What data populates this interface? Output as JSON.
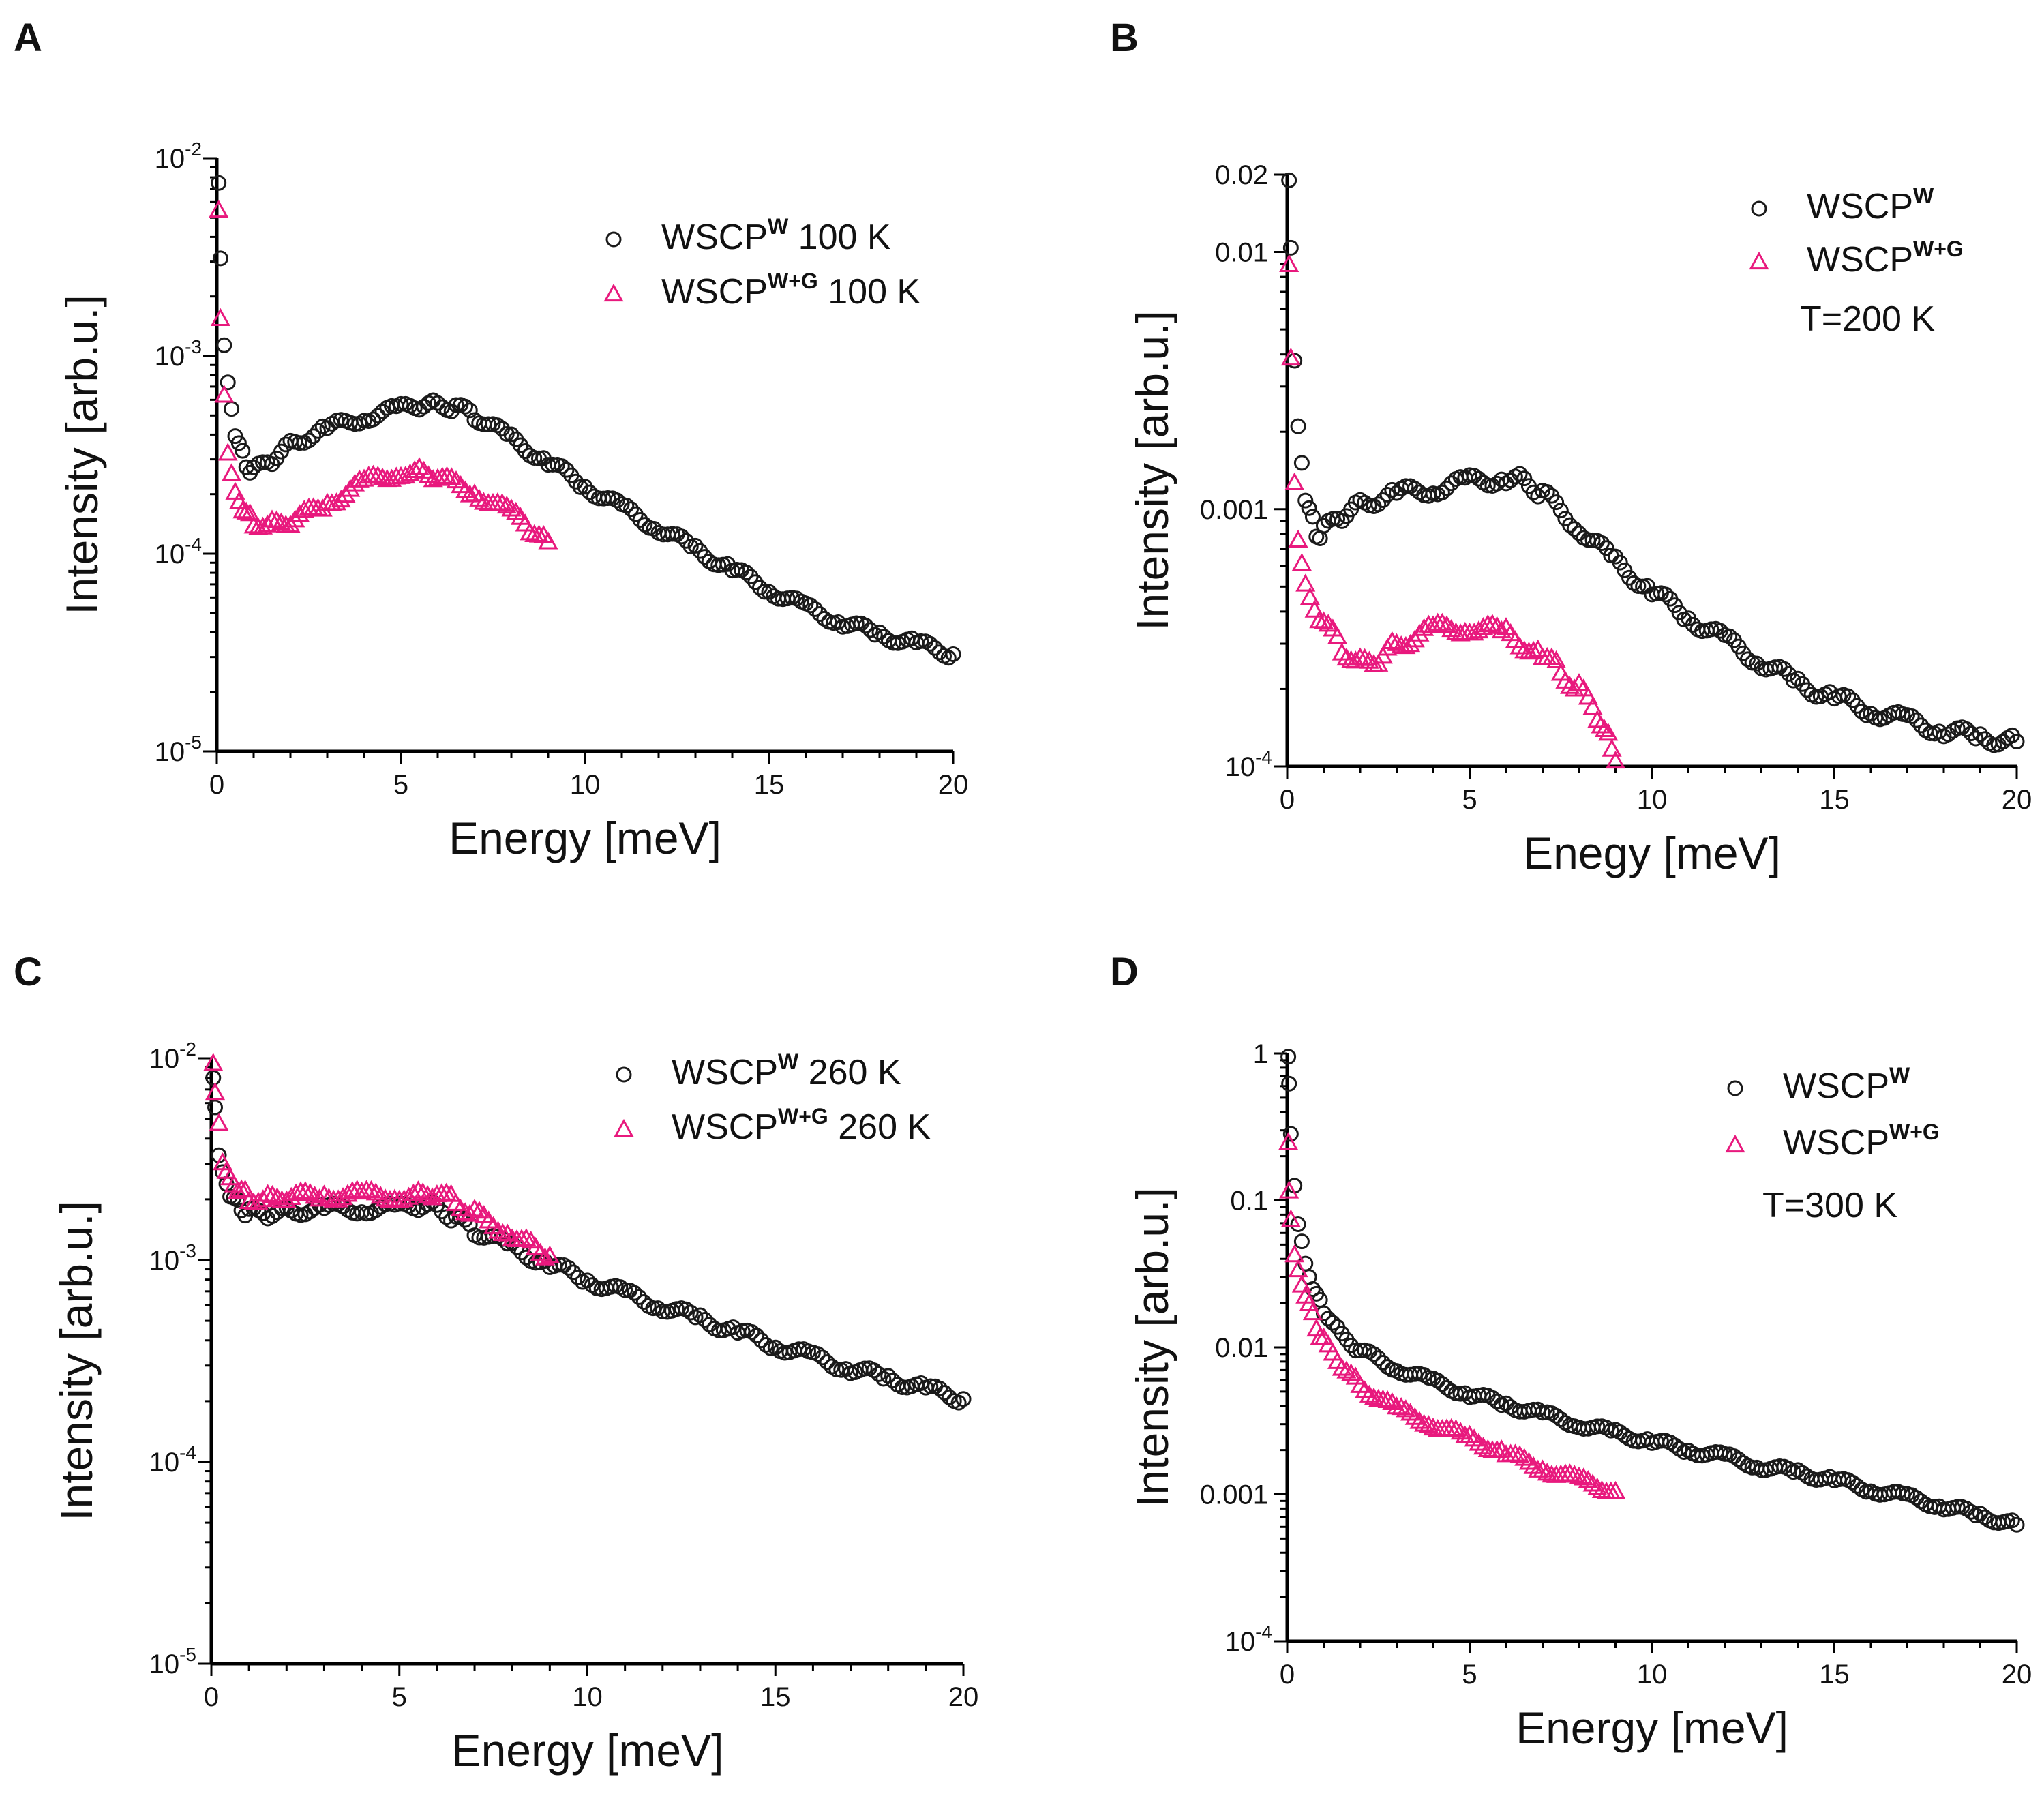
{
  "figure": {
    "colors": {
      "series_w": "#1a1a1a",
      "series_wg": "#e8197d"
    }
  },
  "chart_data": [
    {
      "panel": "A",
      "type": "scatter",
      "xlabel": "Energy [meV]",
      "ylabel": "Intensity [arb.u.]",
      "xlim": [
        0,
        20
      ],
      "ylim": [
        1e-05,
        0.01
      ],
      "yscale": "log",
      "x_ticks": [
        "0",
        "5",
        "10",
        "15",
        "20"
      ],
      "y_ticks": [
        {
          "value": 1e-05,
          "base": "10",
          "exp": "-5"
        },
        {
          "value": 0.0001,
          "base": "10",
          "exp": "-4"
        },
        {
          "value": 0.001,
          "base": "10",
          "exp": "-3"
        },
        {
          "value": 0.01,
          "base": "10",
          "exp": "-2"
        }
      ],
      "legend_position": "top-right",
      "legend": [
        {
          "marker": "circle",
          "name": "WSCP",
          "sup": "W",
          "suffix": " 100 K"
        },
        {
          "marker": "triangle",
          "name": "WSCP",
          "sup": "W+G",
          "suffix": " 100 K"
        }
      ],
      "series": [
        {
          "name": "WSCP^W 100 K",
          "marker": "circle",
          "color": "#1a1a1a",
          "x": [
            0.05,
            0.1,
            0.2,
            0.3,
            0.5,
            0.8,
            1.0,
            1.5,
            2.0,
            3.0,
            4.0,
            5.0,
            5.5,
            6.0,
            6.5,
            7.0,
            8.0,
            9.0,
            10.0,
            11.0,
            12.0,
            13.0,
            14.0,
            15.0,
            16.0,
            17.0,
            18.0,
            19.0,
            20.0
          ],
          "y": [
            0.0075,
            0.003,
            0.0012,
            0.0007,
            0.0004,
            0.00028,
            0.00026,
            0.0003,
            0.00036,
            0.00043,
            0.00049,
            0.00054,
            0.00056,
            0.00057,
            0.00055,
            0.0005,
            0.00038,
            0.00029,
            0.00022,
            0.00017,
            0.000135,
            0.000105,
            8.3e-05,
            6.6e-05,
            5.3e-05,
            4.5e-05,
            3.9e-05,
            3.5e-05,
            3.1e-05
          ]
        },
        {
          "name": "WSCP^W+G 100 K",
          "marker": "triangle",
          "color": "#e8197d",
          "x": [
            0.05,
            0.1,
            0.2,
            0.3,
            0.5,
            0.8,
            1.0,
            1.5,
            2.0,
            3.0,
            4.0,
            5.0,
            5.5,
            6.0,
            7.0,
            8.0,
            8.5,
            9.0
          ],
          "y": [
            0.0055,
            0.0016,
            0.0006,
            0.00034,
            0.0002,
            0.00016,
            0.000145,
            0.00014,
            0.000145,
            0.00018,
            0.00023,
            0.00026,
            0.00026,
            0.000245,
            0.000205,
            0.00016,
            0.000135,
            0.000115
          ]
        }
      ]
    },
    {
      "panel": "B",
      "type": "scatter",
      "xlabel": "Enegy [meV]",
      "ylabel": "Intensity [arb.u.]",
      "xlim": [
        0,
        20
      ],
      "ylim": [
        0.0001,
        0.02
      ],
      "yscale": "log",
      "x_ticks": [
        "0",
        "5",
        "10",
        "15",
        "20"
      ],
      "y_ticks": [
        {
          "value": 0.0001,
          "base": "10",
          "exp": "-4"
        },
        {
          "value": 0.001,
          "label": "0.001"
        },
        {
          "value": 0.01,
          "label": "0.01"
        },
        {
          "value": 0.02,
          "label": "0.02"
        }
      ],
      "legend_position": "top-right",
      "legend": [
        {
          "marker": "circle",
          "name": "WSCP",
          "sup": "W",
          "suffix": ""
        },
        {
          "marker": "triangle",
          "name": "WSCP",
          "sup": "W+G",
          "suffix": ""
        }
      ],
      "annotation": "T=200 K",
      "series": [
        {
          "name": "WSCP^W",
          "marker": "circle",
          "color": "#1a1a1a",
          "x": [
            0.05,
            0.1,
            0.2,
            0.3,
            0.5,
            0.8,
            1.0,
            1.5,
            2.0,
            3.0,
            4.0,
            5.0,
            6.0,
            6.5,
            7.0,
            8.0,
            9.0,
            10.0,
            11.0,
            12.0,
            13.0,
            14.0,
            15.0,
            16.0,
            17.0,
            18.0,
            19.0,
            20.0
          ],
          "y": [
            0.019,
            0.01,
            0.004,
            0.002,
            0.0011,
            0.0008,
            0.00082,
            0.00095,
            0.00105,
            0.00115,
            0.0012,
            0.00128,
            0.00132,
            0.0013,
            0.00115,
            0.00085,
            0.00062,
            0.00048,
            0.00038,
            0.00031,
            0.000255,
            0.00021,
            0.000185,
            0.000165,
            0.00015,
            0.000138,
            0.00013,
            0.000125
          ]
        },
        {
          "name": "WSCP^W+G",
          "marker": "triangle",
          "color": "#e8197d",
          "x": [
            0.05,
            0.1,
            0.2,
            0.3,
            0.5,
            1.0,
            1.5,
            2.0,
            2.5,
            3.0,
            4.0,
            5.0,
            6.0,
            7.0,
            7.5,
            8.0,
            8.5,
            8.8,
            9.0
          ],
          "y": [
            0.009,
            0.004,
            0.0012,
            0.0008,
            0.0005,
            0.00036,
            0.00029,
            0.00025,
            0.00026,
            0.0003,
            0.00034,
            0.00035,
            0.00033,
            0.00027,
            0.000235,
            0.0002,
            0.00016,
            0.00013,
            0.000105
          ]
        }
      ]
    },
    {
      "panel": "C",
      "type": "scatter",
      "xlabel": "Energy [meV]",
      "ylabel": "Intensity [arb.u.]",
      "xlim": [
        0,
        20
      ],
      "ylim": [
        1e-05,
        0.01
      ],
      "yscale": "log",
      "x_ticks": [
        "0",
        "5",
        "10",
        "15",
        "20"
      ],
      "y_ticks": [
        {
          "value": 1e-05,
          "base": "10",
          "exp": "-5"
        },
        {
          "value": 0.0001,
          "base": "10",
          "exp": "-4"
        },
        {
          "value": 0.001,
          "base": "10",
          "exp": "-3"
        },
        {
          "value": 0.01,
          "base": "10",
          "exp": "-2"
        }
      ],
      "legend_position": "top-right",
      "legend": [
        {
          "marker": "circle",
          "name": "WSCP",
          "sup": "W",
          "suffix": " 260 K"
        },
        {
          "marker": "triangle",
          "name": "WSCP",
          "sup": "W+G",
          "suffix": " 260 K"
        }
      ],
      "series": [
        {
          "name": "WSCP^W 260 K",
          "marker": "circle",
          "color": "#1a1a1a",
          "x": [
            0.05,
            0.1,
            0.2,
            0.3,
            0.5,
            0.8,
            1.0,
            1.5,
            2.0,
            3.0,
            4.0,
            5.0,
            5.5,
            6.0,
            6.5,
            7.0,
            8.0,
            9.0,
            10.0,
            11.0,
            12.0,
            13.0,
            14.0,
            15.0,
            16.0,
            17.0,
            18.0,
            19.0,
            20.0
          ],
          "y": [
            0.008,
            0.0055,
            0.0035,
            0.0026,
            0.0021,
            0.0018,
            0.0017,
            0.0017,
            0.00175,
            0.0018,
            0.0018,
            0.0018,
            0.00185,
            0.00185,
            0.0016,
            0.0014,
            0.00115,
            0.00095,
            0.0008,
            0.00068,
            0.00059,
            0.00051,
            0.00044,
            0.00038,
            0.00033,
            0.00029,
            0.00026,
            0.00023,
            0.000205
          ]
        },
        {
          "name": "WSCP^W+G 260 K",
          "marker": "triangle",
          "color": "#e8197d",
          "x": [
            0.05,
            0.1,
            0.2,
            0.3,
            0.5,
            0.8,
            1.0,
            1.5,
            2.0,
            3.0,
            4.0,
            5.0,
            5.5,
            6.0,
            6.5,
            7.0,
            8.0,
            8.5,
            9.0
          ],
          "y": [
            0.0095,
            0.007,
            0.0045,
            0.0032,
            0.0025,
            0.0022,
            0.00205,
            0.002,
            0.00205,
            0.0021,
            0.0021,
            0.0021,
            0.0021,
            0.00215,
            0.00195,
            0.0017,
            0.00135,
            0.0012,
            0.00105
          ]
        }
      ]
    },
    {
      "panel": "D",
      "type": "scatter",
      "xlabel": "Energy [meV]",
      "ylabel": "Intensity [arb.u.]",
      "xlim": [
        0,
        20
      ],
      "ylim": [
        0.0001,
        1
      ],
      "yscale": "log",
      "x_ticks": [
        "0",
        "5",
        "10",
        "15",
        "20"
      ],
      "y_ticks": [
        {
          "value": 0.0001,
          "base": "10",
          "exp": "-4"
        },
        {
          "value": 0.001,
          "label": "0.001"
        },
        {
          "value": 0.01,
          "label": "0.01"
        },
        {
          "value": 0.1,
          "label": "0.1"
        },
        {
          "value": 1,
          "label": "1"
        }
      ],
      "legend_position": "top-right",
      "legend": [
        {
          "marker": "circle",
          "name": "WSCP",
          "sup": "W",
          "suffix": ""
        },
        {
          "marker": "triangle",
          "name": "WSCP",
          "sup": "W+G",
          "suffix": ""
        }
      ],
      "annotation": "T=300 K",
      "series": [
        {
          "name": "WSCP^W",
          "marker": "circle",
          "color": "#1a1a1a",
          "x": [
            0.03,
            0.05,
            0.1,
            0.2,
            0.3,
            0.5,
            0.8,
            1.0,
            1.5,
            2.0,
            3.0,
            4.0,
            5.0,
            6.0,
            7.0,
            8.0,
            9.0,
            10.0,
            11.0,
            12.0,
            13.0,
            14.0,
            15.0,
            16.0,
            17.0,
            18.0,
            19.0,
            20.0
          ],
          "y": [
            0.95,
            0.6,
            0.3,
            0.12,
            0.07,
            0.038,
            0.022,
            0.018,
            0.012,
            0.0095,
            0.0072,
            0.0058,
            0.0048,
            0.0041,
            0.0035,
            0.003,
            0.0026,
            0.0023,
            0.002,
            0.0018,
            0.00155,
            0.0014,
            0.00125,
            0.00108,
            0.00095,
            0.00083,
            0.00072,
            0.00062
          ]
        },
        {
          "name": "WSCP^W+G",
          "marker": "triangle",
          "color": "#e8197d",
          "x": [
            0.03,
            0.05,
            0.1,
            0.2,
            0.3,
            0.5,
            0.8,
            1.0,
            1.5,
            2.0,
            3.0,
            4.0,
            5.0,
            6.0,
            7.0,
            8.0,
            9.0
          ],
          "y": [
            0.25,
            0.12,
            0.07,
            0.045,
            0.033,
            0.022,
            0.014,
            0.011,
            0.0075,
            0.0055,
            0.0038,
            0.003,
            0.0024,
            0.0019,
            0.0015,
            0.00125,
            0.00105
          ]
        }
      ]
    }
  ]
}
